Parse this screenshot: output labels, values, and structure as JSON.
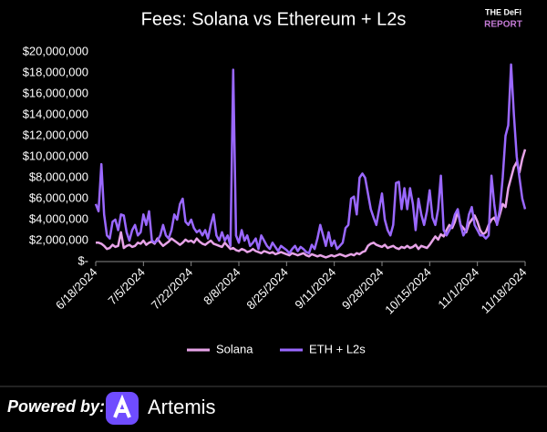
{
  "chart_data": {
    "type": "line",
    "title": "Fees: Solana vs Ethereum + L2s",
    "categories": [
      "6/18/2024",
      null,
      null,
      null,
      null,
      null,
      null,
      null,
      null,
      null,
      null,
      null,
      null,
      null,
      null,
      null,
      null,
      "7/5/2024",
      null,
      null,
      null,
      null,
      null,
      null,
      null,
      null,
      null,
      null,
      null,
      null,
      null,
      null,
      null,
      null,
      "7/22/2024",
      null,
      null,
      null,
      null,
      null,
      null,
      null,
      null,
      null,
      null,
      null,
      null,
      null,
      null,
      null,
      null,
      "8/8/2024",
      null,
      null,
      null,
      null,
      null,
      null,
      null,
      null,
      null,
      null,
      null,
      null,
      null,
      null,
      null,
      null,
      "8/25/2024",
      null,
      null,
      null,
      null,
      null,
      null,
      null,
      null,
      null,
      null,
      null,
      null,
      null,
      null,
      null,
      null,
      "9/11/2024",
      null,
      null,
      null,
      null,
      null,
      null,
      null,
      null,
      null,
      null,
      null,
      null,
      null,
      null,
      null,
      null,
      "9/28/2024",
      null,
      null,
      null,
      null,
      null,
      null,
      null,
      null,
      null,
      null,
      null,
      null,
      null,
      null,
      null,
      null,
      "10/15/2024",
      null,
      null,
      null,
      null,
      null,
      null,
      null,
      null,
      null,
      null,
      null,
      null,
      null,
      null,
      null,
      null,
      "11/1/2024",
      null,
      null,
      null,
      null,
      null,
      null,
      null,
      null,
      null,
      null,
      null,
      null,
      null,
      null,
      null,
      null,
      "11/18/2024"
    ],
    "series": [
      {
        "name": "Solana",
        "color": "#e7a3e8",
        "values": [
          1800000.0,
          1800000.0,
          1700000.0,
          1500000.0,
          1200000.0,
          1300000.0,
          1600000.0,
          1400000.0,
          1500000.0,
          2800000.0,
          1300000.0,
          1500000.0,
          1600000.0,
          1400000.0,
          1500000.0,
          1800000.0,
          1700000.0,
          2000000.0,
          1600000.0,
          1800000.0,
          1900000.0,
          1700000.0,
          2200000.0,
          1800000.0,
          1500000.0,
          1700000.0,
          1900000.0,
          2200000.0,
          2000000.0,
          1800000.0,
          1600000.0,
          1800000.0,
          2100000.0,
          1900000.0,
          2000000.0,
          1800000.0,
          2200000.0,
          1900000.0,
          1700000.0,
          1600000.0,
          1800000.0,
          2000000.0,
          1700000.0,
          1600000.0,
          1500000.0,
          1400000.0,
          1800000.0,
          1500000.0,
          1200000.0,
          1300000.0,
          1100000.0,
          1000000.0,
          1200000.0,
          1100000.0,
          900000.0,
          1000000.0,
          1200000.0,
          1000000.0,
          900000.0,
          800000.0,
          1000000.0,
          900000.0,
          800000.0,
          900000.0,
          700000.0,
          800000.0,
          900000.0,
          800000.0,
          700000.0,
          600000.0,
          800000.0,
          700000.0,
          600000.0,
          700000.0,
          800000.0,
          600000.0,
          500000.0,
          700000.0,
          600000.0,
          500000.0,
          600000.0,
          500000.0,
          400000.0,
          500000.0,
          600000.0,
          500000.0,
          600000.0,
          700000.0,
          600000.0,
          500000.0,
          600000.0,
          700000.0,
          600000.0,
          800000.0,
          700000.0,
          900000.0,
          1000000.0,
          1500000.0,
          1700000.0,
          1800000.0,
          1600000.0,
          1500000.0,
          1400000.0,
          1600000.0,
          1300000.0,
          1400000.0,
          1500000.0,
          1300000.0,
          1200000.0,
          1400000.0,
          1300000.0,
          1500000.0,
          1300000.0,
          1400000.0,
          1600000.0,
          1200000.0,
          1500000.0,
          1400000.0,
          1300000.0,
          1600000.0,
          2000000.0,
          2400000.0,
          2100000.0,
          2600000.0,
          2400000.0,
          3000000.0,
          3500000.0,
          3200000.0,
          3800000.0,
          4800000.0,
          3500000.0,
          3200000.0,
          2800000.0,
          3600000.0,
          4000000.0,
          4400000.0,
          3800000.0,
          3000000.0,
          2600000.0,
          2800000.0,
          3500000.0,
          4000000.0,
          4200000.0,
          3600000.0,
          4500000.0,
          5500000.0,
          5200000.0,
          7000000.0,
          8000000.0,
          9000000.0,
          9500000.0,
          8500000.0,
          9800000.0,
          10700000.0
        ]
      },
      {
        "name": "ETH + L2s",
        "color": "#9a68ff",
        "values": [
          5500000.0,
          4800000.0,
          9300000.0,
          4500000.0,
          2500000.0,
          2200000.0,
          3800000.0,
          4000000.0,
          3000000.0,
          4500000.0,
          4400000.0,
          2800000.0,
          2000000.0,
          3000000.0,
          3500000.0,
          2500000.0,
          2800000.0,
          4500000.0,
          3500000.0,
          4800000.0,
          2000000.0,
          1800000.0,
          2000000.0,
          2500000.0,
          3500000.0,
          2500000.0,
          2200000.0,
          3000000.0,
          4500000.0,
          4000000.0,
          5500000.0,
          6000000.0,
          3800000.0,
          3500000.0,
          4000000.0,
          3200000.0,
          2800000.0,
          3000000.0,
          2500000.0,
          3000000.0,
          2200000.0,
          3500000.0,
          4500000.0,
          2500000.0,
          2000000.0,
          2800000.0,
          2000000.0,
          2500000.0,
          1500000.0,
          18300000.0,
          2500000.0,
          1800000.0,
          3000000.0,
          2000000.0,
          2500000.0,
          1500000.0,
          1800000.0,
          2200000.0,
          1200000.0,
          2500000.0,
          2000000.0,
          1500000.0,
          1200000.0,
          1800000.0,
          1400000.0,
          1000000.0,
          1500000.0,
          1300000.0,
          1100000.0,
          800000.0,
          1200000.0,
          1500000.0,
          1000000.0,
          1400000.0,
          1200000.0,
          900000.0,
          800000.0,
          1600000.0,
          1200000.0,
          2200000.0,
          3500000.0,
          2500000.0,
          1500000.0,
          2800000.0,
          1500000.0,
          2000000.0,
          1200000.0,
          1500000.0,
          1800000.0,
          3200000.0,
          3500000.0,
          6000000.0,
          6200000.0,
          4500000.0,
          8000000.0,
          8400000.0,
          8000000.0,
          6500000.0,
          5000000.0,
          4200000.0,
          3500000.0,
          5000000.0,
          6500000.0,
          4000000.0,
          3000000.0,
          2500000.0,
          3500000.0,
          7500000.0,
          7600000.0,
          5000000.0,
          7000000.0,
          5000000.0,
          7000000.0,
          5500000.0,
          3000000.0,
          6000000.0,
          4500000.0,
          3500000.0,
          4800000.0,
          6800000.0,
          4200000.0,
          3500000.0,
          5000000.0,
          8200000.0,
          3000000.0,
          2500000.0,
          3000000.0,
          3500000.0,
          4500000.0,
          5000000.0,
          3500000.0,
          2500000.0,
          3000000.0,
          4500000.0,
          5200000.0,
          3500000.0,
          3000000.0,
          2500000.0,
          2500000.0,
          2200000.0,
          2500000.0,
          8200000.0,
          5500000.0,
          3500000.0,
          5000000.0,
          8000000.0,
          12000000.0,
          13000000.0,
          18800000.0,
          14000000.0,
          10000000.0,
          8000000.0,
          6000000.0,
          5000000.0
        ]
      }
    ],
    "ylim": [
      0,
      20000000
    ],
    "yticks": [
      {
        "value": 0,
        "label": "$-"
      },
      {
        "value": 2000000,
        "label": "$2,000,000"
      },
      {
        "value": 4000000,
        "label": "$4,000,000"
      },
      {
        "value": 6000000,
        "label": "$6,000,000"
      },
      {
        "value": 8000000,
        "label": "$8,000,000"
      },
      {
        "value": 10000000,
        "label": "$10,000,000"
      },
      {
        "value": 12000000,
        "label": "$12,000,000"
      },
      {
        "value": 14000000,
        "label": "$14,000,000"
      },
      {
        "value": 16000000,
        "label": "$16,000,000"
      },
      {
        "value": 18000000,
        "label": "$18,000,000"
      },
      {
        "value": 20000000,
        "label": "$20,000,000"
      }
    ],
    "grid": false,
    "legend": "bottom"
  },
  "branding": {
    "logo_top": "THE DeFi",
    "logo_bottom": "REPORT",
    "footer_label": "Powered by:",
    "footer_brand": "Artemis"
  }
}
